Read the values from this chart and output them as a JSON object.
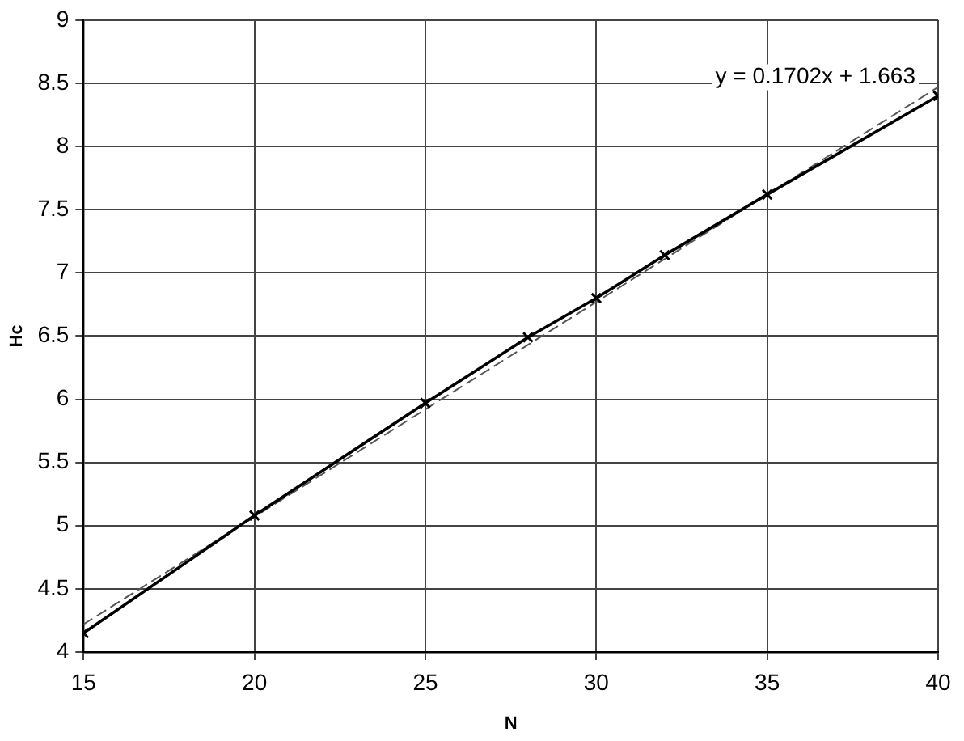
{
  "chart_data": {
    "type": "line",
    "xlabel": "N",
    "ylabel": "Hc",
    "x": [
      15,
      20,
      25,
      28,
      30,
      32,
      35,
      40
    ],
    "series": [
      {
        "color": "#000000",
        "values": [
          4.15,
          5.08,
          5.97,
          6.49,
          6.8,
          7.14,
          7.62,
          8.4
        ],
        "marker": "cross",
        "line_style": "solid"
      },
      {
        "type": "line",
        "x": [
          15,
          40
        ],
        "values": [
          4.22,
          8.47
        ],
        "color": "#555555",
        "marker": "none",
        "line_style": "dashed"
      }
    ],
    "xlim": [
      15,
      40
    ],
    "ylim": [
      4,
      9
    ],
    "xticks": [
      15,
      20,
      25,
      30,
      35,
      40
    ],
    "yticks": [
      4,
      4.5,
      5,
      5.5,
      6,
      6.5,
      7,
      7.5,
      8,
      8.5,
      9
    ],
    "grid": true,
    "legend": false,
    "annotations": [
      {
        "text": "y = 0.1702x + 1.663",
        "x": 40,
        "y": 8.47
      }
    ]
  }
}
